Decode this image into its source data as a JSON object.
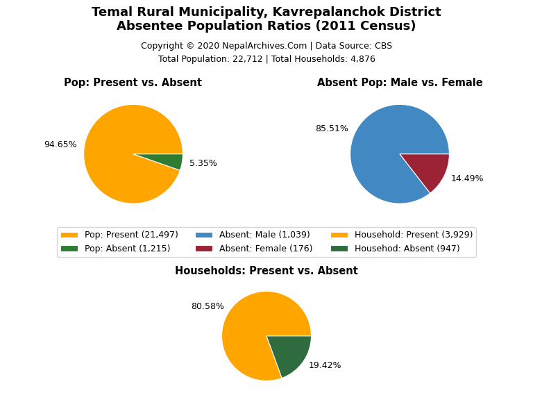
{
  "title": "Temal Rural Municipality, Kavrepalanchok District\nAbsentee Population Ratios (2011 Census)",
  "subtitle": "Copyright © 2020 NepalArchives.Com | Data Source: CBS",
  "annotations": [
    "Total Population: 22,712 | Total Households: 4,876"
  ],
  "legend": "center",
  "chart_data": [
    {
      "type": "pie",
      "title": "Pop: Present vs. Absent",
      "categories": [
        "Pop: Present (21,497)",
        "Pop: Absent (1,215)"
      ],
      "values": [
        94.65,
        5.35
      ],
      "value_labels": [
        "94.65%",
        "5.35%"
      ],
      "colors": [
        "#FFA500",
        "#2E7D32"
      ],
      "data_labels": true
    },
    {
      "type": "pie",
      "title": "Absent Pop: Male vs. Female",
      "categories": [
        "Absent: Male (1,039)",
        "Absent: Female (176)"
      ],
      "values": [
        85.51,
        14.49
      ],
      "value_labels": [
        "85.51%",
        "14.49%"
      ],
      "colors": [
        "#4289C4",
        "#9B2335"
      ],
      "data_labels": true
    },
    {
      "type": "pie",
      "title": "Households: Present vs. Absent",
      "categories": [
        "Household: Present (3,929)",
        "Househod: Absent (947)"
      ],
      "values": [
        80.58,
        19.42
      ],
      "value_labels": [
        "80.58%",
        "19.42%"
      ],
      "colors": [
        "#FFA500",
        "#2E6B3E"
      ],
      "data_labels": true
    }
  ]
}
